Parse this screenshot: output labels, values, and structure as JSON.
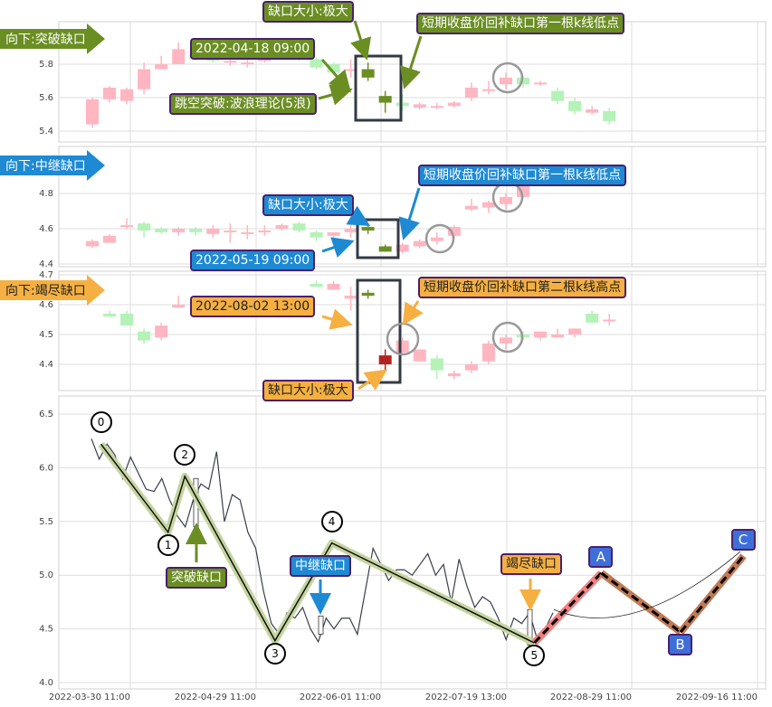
{
  "colors": {
    "up": "#ffb6c1",
    "down": "#b4f2b8",
    "gap_down": "#6b8e23",
    "gap_up": "#b22222",
    "green_label": "#6b8e23",
    "blue_label": "#1e8ad4",
    "orange_label": "#f5b041",
    "wave_band": "#c5d4a0",
    "proj_up": "#f08080",
    "proj_down": "#c07a55",
    "wave_box": "#3e6fd8"
  },
  "chart_data": [
    {
      "type": "candlestick",
      "title": "向下:突破缺口",
      "yticks": [
        5.4,
        5.6,
        5.8
      ],
      "candles": [
        [
          5.44,
          5.6,
          5.42,
          5.59
        ],
        [
          5.59,
          5.67,
          5.57,
          5.66
        ],
        [
          5.58,
          5.66,
          5.56,
          5.65
        ],
        [
          5.65,
          5.81,
          5.62,
          5.77
        ],
        [
          5.77,
          5.85,
          5.77,
          5.8
        ],
        [
          5.8,
          5.93,
          5.8,
          5.89
        ],
        [
          5.86,
          5.88,
          5.82,
          5.83
        ],
        [
          5.84,
          5.86,
          5.81,
          5.82
        ],
        [
          5.82,
          5.84,
          5.79,
          5.82
        ],
        [
          5.81,
          5.83,
          5.78,
          5.81
        ],
        [
          5.83,
          5.85,
          5.81,
          5.83
        ],
        [
          5.85,
          5.87,
          5.83,
          5.85
        ],
        [
          5.86,
          5.9,
          5.82,
          5.84
        ],
        [
          5.83,
          5.84,
          5.77,
          5.78
        ],
        [
          5.8,
          5.81,
          5.74,
          5.75
        ],
        [
          5.76,
          5.83,
          5.72,
          5.77
        ],
        [
          5.77,
          5.81,
          5.7,
          5.72,
          "gap"
        ],
        [
          5.61,
          5.64,
          5.51,
          5.57,
          "gap"
        ],
        [
          5.57,
          5.62,
          5.52,
          5.55
        ],
        [
          5.54,
          5.57,
          5.53,
          5.56
        ],
        [
          5.55,
          5.57,
          5.53,
          5.55
        ],
        [
          5.55,
          5.58,
          5.54,
          5.57
        ],
        [
          5.6,
          5.69,
          5.58,
          5.66
        ],
        [
          5.64,
          5.7,
          5.62,
          5.65
        ],
        [
          5.68,
          5.75,
          5.65,
          5.72
        ],
        [
          5.72,
          5.73,
          5.66,
          5.68
        ],
        [
          5.69,
          5.7,
          5.67,
          5.69
        ],
        [
          5.64,
          5.66,
          5.56,
          5.58
        ],
        [
          5.58,
          5.6,
          5.5,
          5.52
        ],
        [
          5.51,
          5.55,
          5.5,
          5.53
        ],
        [
          5.52,
          5.54,
          5.44,
          5.46
        ]
      ],
      "annotations": {
        "gap_size": "缺口大小:极大",
        "refill": "短期收盘价回补缺口第一根k线低点",
        "time": "2022-04-18 09:00",
        "pattern": "跳空突破:波浪理论(5浪)"
      }
    },
    {
      "type": "candlestick",
      "title": "向下:中继缺口",
      "yticks": [
        4.4,
        4.6,
        4.8
      ],
      "candles": [
        [
          4.5,
          4.54,
          4.49,
          4.53
        ],
        [
          4.52,
          4.57,
          4.52,
          4.56
        ],
        [
          4.62,
          4.66,
          4.6,
          4.62
        ],
        [
          4.63,
          4.64,
          4.55,
          4.59
        ],
        [
          4.6,
          4.61,
          4.57,
          4.58
        ],
        [
          4.58,
          4.61,
          4.56,
          4.6
        ],
        [
          4.6,
          4.61,
          4.56,
          4.58
        ],
        [
          4.57,
          4.62,
          4.55,
          4.6
        ],
        [
          4.59,
          4.63,
          4.52,
          4.59
        ],
        [
          4.58,
          4.62,
          4.54,
          4.58
        ],
        [
          4.59,
          4.62,
          4.56,
          4.59
        ],
        [
          4.6,
          4.63,
          4.59,
          4.62
        ],
        [
          4.63,
          4.64,
          4.58,
          4.59
        ],
        [
          4.58,
          4.59,
          4.53,
          4.55
        ],
        [
          4.56,
          4.58,
          4.55,
          4.58
        ],
        [
          4.58,
          4.63,
          4.55,
          4.6
        ],
        [
          4.61,
          4.62,
          4.57,
          4.59,
          "gap"
        ],
        [
          4.5,
          4.51,
          4.47,
          4.47,
          "gap"
        ],
        [
          4.47,
          4.52,
          4.46,
          4.51
        ],
        [
          4.5,
          4.54,
          4.49,
          4.53
        ],
        [
          4.53,
          4.58,
          4.51,
          4.55
        ],
        [
          4.56,
          4.62,
          4.54,
          4.61
        ],
        [
          4.71,
          4.77,
          4.7,
          4.73
        ],
        [
          4.72,
          4.76,
          4.69,
          4.75
        ],
        [
          4.74,
          4.8,
          4.71,
          4.78
        ],
        [
          4.78,
          4.9,
          4.77,
          4.86
        ]
      ],
      "annotations": {
        "gap_size": "缺口大小:极大",
        "refill": "短期收盘价回补缺口第一根k线低点",
        "time": "2022-05-19 09:00"
      }
    },
    {
      "type": "candlestick",
      "title": "向下:竭尽缺口",
      "yticks": [
        4.4,
        4.5,
        4.6,
        4.7
      ],
      "candles": [
        null,
        [
          4.57,
          4.58,
          4.56,
          4.56
        ],
        [
          4.57,
          4.58,
          4.53,
          4.53
        ],
        [
          4.51,
          4.52,
          4.47,
          4.48
        ],
        [
          4.49,
          4.54,
          4.48,
          4.53
        ],
        [
          4.59,
          4.63,
          4.59,
          4.6
        ],
        null,
        null,
        null,
        null,
        null,
        null,
        null,
        [
          4.67,
          4.68,
          4.66,
          4.66
        ],
        [
          4.65,
          4.68,
          4.65,
          4.67
        ],
        [
          4.62,
          4.66,
          4.58,
          4.63
        ],
        [
          4.64,
          4.65,
          4.62,
          4.63,
          "gap"
        ],
        [
          4.4,
          4.45,
          4.38,
          4.43,
          "gap"
        ],
        [
          4.44,
          4.49,
          4.43,
          4.48
        ],
        [
          4.41,
          4.45,
          4.41,
          4.45
        ],
        [
          4.42,
          4.43,
          4.35,
          4.38
        ],
        [
          4.36,
          4.38,
          4.35,
          4.37
        ],
        [
          4.38,
          4.41,
          4.37,
          4.4
        ],
        [
          4.41,
          4.48,
          4.4,
          4.47
        ],
        [
          4.47,
          4.5,
          4.45,
          4.49
        ],
        [
          4.5,
          4.51,
          4.48,
          4.49
        ],
        [
          4.49,
          4.51,
          4.48,
          4.51
        ],
        [
          4.49,
          4.52,
          4.49,
          4.5
        ],
        [
          4.5,
          4.52,
          4.49,
          4.52
        ],
        [
          4.57,
          4.58,
          4.54,
          4.54
        ],
        [
          4.55,
          4.57,
          4.53,
          4.55
        ]
      ],
      "annotations": {
        "gap_size": "缺口大小:极大",
        "refill": "短期收盘价回补缺口第二根k线高点",
        "time": "2022-08-02 13:00"
      }
    },
    {
      "type": "line",
      "yticks": [
        4.0,
        4.5,
        5.0,
        5.5,
        6.0,
        6.5
      ],
      "xticks": [
        "2022-03-30 11:00",
        "2022-04-29 11:00",
        "2022-06-01 11:00",
        "2022-07-19 13:00",
        "2022-08-29 11:00",
        "2022-09-16 11:00"
      ],
      "price": [
        6.27,
        6.08,
        6.22,
        6.12,
        5.9,
        6.1,
        5.95,
        5.8,
        5.78,
        5.9,
        5.7,
        5.55,
        5.45,
        5.7,
        5.85,
        5.8,
        6.15,
        5.5,
        5.75,
        5.7,
        5.4,
        5.25,
        4.85,
        4.55,
        4.45,
        4.65,
        4.6,
        4.7,
        4.5,
        4.38,
        4.6,
        4.5,
        4.6,
        4.6,
        4.45,
        4.85,
        5.25,
        5.1,
        4.95,
        5.05,
        5.05,
        5.0,
        5.1,
        5.2,
        5.0,
        5.1,
        4.75,
        5.15,
        4.9,
        4.7,
        4.8,
        4.75,
        4.6,
        4.4,
        4.6,
        4.55,
        4.65,
        4.4,
        4.5,
        4.65
      ],
      "waves": [
        {
          "label": "0",
          "time": "2022-03-23",
          "price": 6.22
        },
        {
          "label": "1",
          "time": "2022-04-08",
          "price": 5.4
        },
        {
          "label": "2",
          "time": "2022-04-12",
          "price": 5.92
        },
        {
          "label": "3",
          "time": "2022-05-04",
          "price": 4.39
        },
        {
          "label": "4",
          "time": "2022-05-19",
          "price": 5.3
        },
        {
          "label": "5",
          "time": "2022-07-28",
          "price": 4.37
        }
      ],
      "projection": [
        {
          "label": "A",
          "time": "2022-08-19",
          "price": 5.02
        },
        {
          "label": "B",
          "time": "2022-09-05",
          "price": 4.47
        },
        {
          "label": "C",
          "time": "2022-09-14",
          "price": 5.18
        }
      ],
      "gap_labels": {
        "breakaway": "突破缺口",
        "runaway": "中继缺口",
        "exhaustion": "竭尽缺口"
      }
    }
  ]
}
